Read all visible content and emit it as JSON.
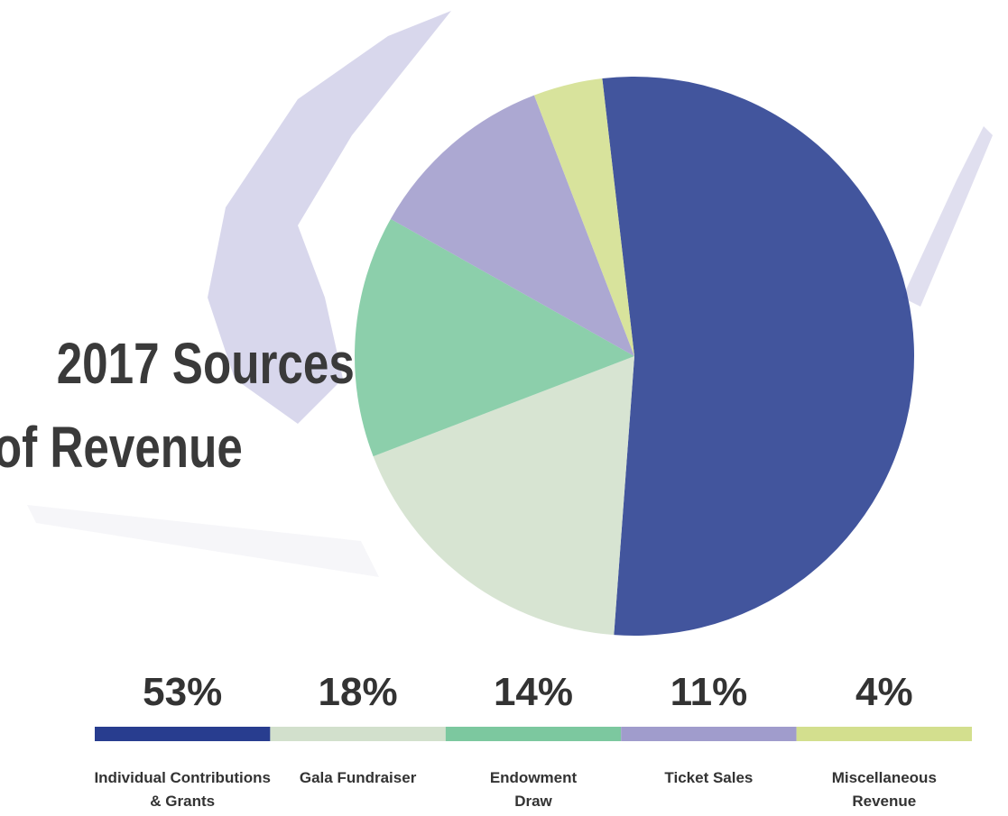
{
  "chart_data": {
    "type": "pie",
    "title": [
      "2017 Sources",
      "of Revenue"
    ],
    "categories": [
      [
        "Individual Contributions",
        "& Grants"
      ],
      [
        "Gala Fundraiser"
      ],
      [
        "Endowment",
        "Draw"
      ],
      [
        "Ticket Sales"
      ],
      [
        "Miscellaneous",
        "Revenue"
      ]
    ],
    "values": [
      53,
      18,
      14,
      11,
      4
    ],
    "value_labels": [
      "53%",
      "18%",
      "14%",
      "11%",
      "4%"
    ],
    "colors": [
      "#283d8f",
      "#d2e0cc",
      "#7cc89f",
      "#a09ccc",
      "#d3df8e"
    ]
  }
}
